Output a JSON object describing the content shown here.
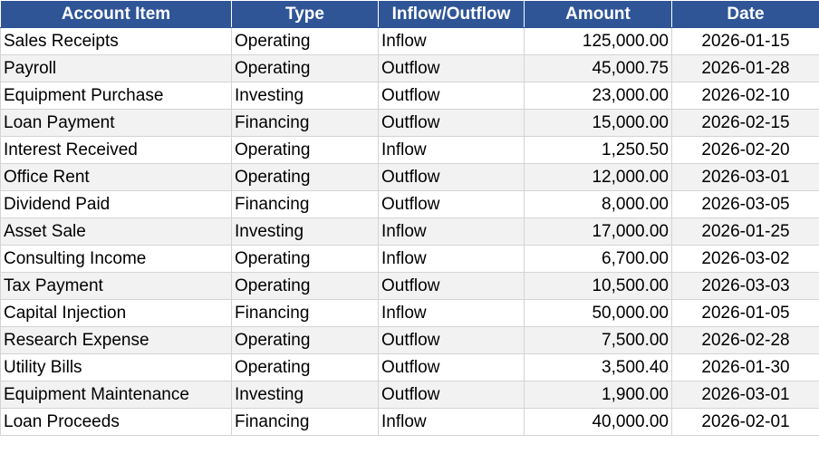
{
  "table": {
    "header": [
      "Account Item",
      "Type",
      "Inflow/Outflow",
      "Amount",
      "Date"
    ],
    "rows": [
      [
        "Sales Receipts",
        "Operating",
        "Inflow",
        "125,000.00",
        "2026-01-15"
      ],
      [
        "Payroll",
        "Operating",
        "Outflow",
        "45,000.75",
        "2026-01-28"
      ],
      [
        "Equipment Purchase",
        "Investing",
        "Outflow",
        "23,000.00",
        "2026-02-10"
      ],
      [
        "Loan Payment",
        "Financing",
        "Outflow",
        "15,000.00",
        "2026-02-15"
      ],
      [
        "Interest Received",
        "Operating",
        "Inflow",
        "1,250.50",
        "2026-02-20"
      ],
      [
        "Office Rent",
        "Operating",
        "Outflow",
        "12,000.00",
        "2026-03-01"
      ],
      [
        "Dividend Paid",
        "Financing",
        "Outflow",
        "8,000.00",
        "2026-03-05"
      ],
      [
        "Asset Sale",
        "Investing",
        "Inflow",
        "17,000.00",
        "2026-01-25"
      ],
      [
        "Consulting Income",
        "Operating",
        "Inflow",
        "6,700.00",
        "2026-03-02"
      ],
      [
        "Tax Payment",
        "Operating",
        "Outflow",
        "10,500.00",
        "2026-03-03"
      ],
      [
        "Capital Injection",
        "Financing",
        "Inflow",
        "50,000.00",
        "2026-01-05"
      ],
      [
        "Research Expense",
        "Operating",
        "Outflow",
        "7,500.00",
        "2026-02-28"
      ],
      [
        "Utility Bills",
        "Operating",
        "Outflow",
        "3,500.40",
        "2026-01-30"
      ],
      [
        "Equipment Maintenance",
        "Investing",
        "Outflow",
        "1,900.00",
        "2026-03-01"
      ],
      [
        "Loan Proceeds",
        "Financing",
        "Inflow",
        "40,000.00",
        "2026-02-01"
      ]
    ]
  }
}
